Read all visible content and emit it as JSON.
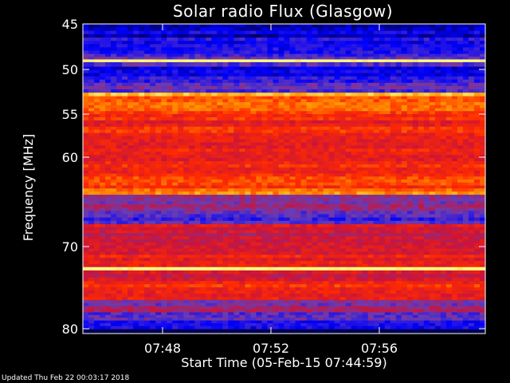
{
  "chart_data": {
    "type": "heatmap",
    "title": "Solar radio Flux (Glasgow)",
    "ylabel": "Frequency [MHz]",
    "xlabel": "Start Time (05-Feb-15 07:44:59)",
    "footer": "Updated Thu Feb 22 00:03:17 2018",
    "y_ticks": [
      "45",
      "50",
      "55",
      "60",
      "70",
      "80"
    ],
    "x_ticks": [
      "07:48",
      "07:52",
      "07:56"
    ],
    "ylim_mhz": [
      45,
      80
    ],
    "colormap": [
      "#000060",
      "#0000ff",
      "#6a3cb4",
      "#c8143c",
      "#ff2a00",
      "#ff9a00",
      "#ffff80"
    ],
    "bands": [
      {
        "from": 45.0,
        "to": 46.5,
        "intensity": 0.12
      },
      {
        "from": 46.5,
        "to": 48.3,
        "intensity": 0.18
      },
      {
        "from": 48.3,
        "to": 48.9,
        "intensity": 0.3
      },
      {
        "from": 48.9,
        "to": 49.2,
        "intensity": 0.98
      },
      {
        "from": 49.2,
        "to": 49.7,
        "intensity": 0.35
      },
      {
        "from": 49.7,
        "to": 51.5,
        "intensity": 0.18
      },
      {
        "from": 51.5,
        "to": 52.6,
        "intensity": 0.3
      },
      {
        "from": 52.6,
        "to": 53.0,
        "intensity": 0.85
      },
      {
        "from": 53.0,
        "to": 55.0,
        "intensity": 0.72
      },
      {
        "from": 55.0,
        "to": 61.5,
        "intensity": 0.62
      },
      {
        "from": 61.5,
        "to": 63.5,
        "intensity": 0.66
      },
      {
        "from": 63.5,
        "to": 64.2,
        "intensity": 0.8
      },
      {
        "from": 64.2,
        "to": 66.0,
        "intensity": 0.42
      },
      {
        "from": 66.0,
        "to": 67.5,
        "intensity": 0.3
      },
      {
        "from": 67.5,
        "to": 68.5,
        "intensity": 0.55
      },
      {
        "from": 68.5,
        "to": 71.0,
        "intensity": 0.5
      },
      {
        "from": 71.0,
        "to": 72.5,
        "intensity": 0.58
      },
      {
        "from": 72.5,
        "to": 72.9,
        "intensity": 0.98
      },
      {
        "from": 72.9,
        "to": 74.2,
        "intensity": 0.5
      },
      {
        "from": 74.2,
        "to": 76.5,
        "intensity": 0.62
      },
      {
        "from": 76.5,
        "to": 78.0,
        "intensity": 0.4
      },
      {
        "from": 78.0,
        "to": 79.0,
        "intensity": 0.28
      },
      {
        "from": 79.0,
        "to": 80.0,
        "intensity": 0.16
      }
    ],
    "grid": false
  }
}
